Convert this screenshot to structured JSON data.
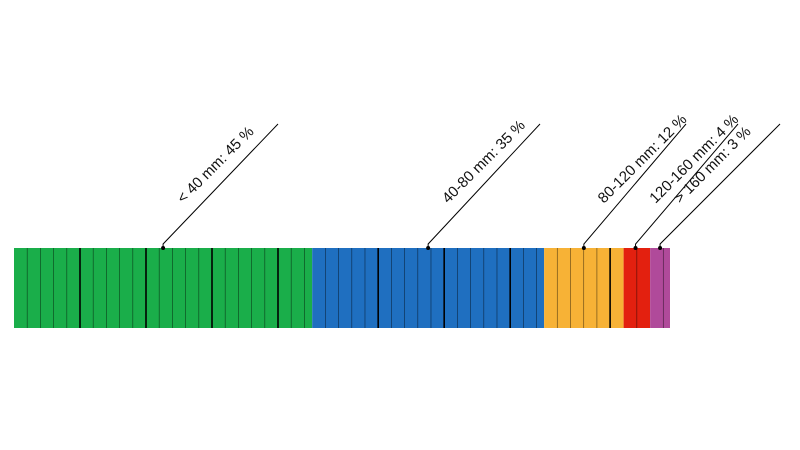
{
  "chart_data": {
    "type": "bar",
    "orientation": "horizontal-stacked",
    "title": "",
    "segments": [
      {
        "label": "< 40 mm: 45 %",
        "value": 45,
        "color": "#1aae4a"
      },
      {
        "label": "40-80 mm: 35 %",
        "value": 35,
        "color": "#1f6fc0"
      },
      {
        "label": "80-120 mm: 12 %",
        "value": 12,
        "color": "#f7b236"
      },
      {
        "label": "120-160 mm: 4 %",
        "value": 4,
        "color": "#e3200f"
      },
      {
        "label": "> 160 mm: 3 %",
        "value": 3,
        "color": "#b04a9a"
      }
    ],
    "grid": false,
    "legend": "none"
  }
}
